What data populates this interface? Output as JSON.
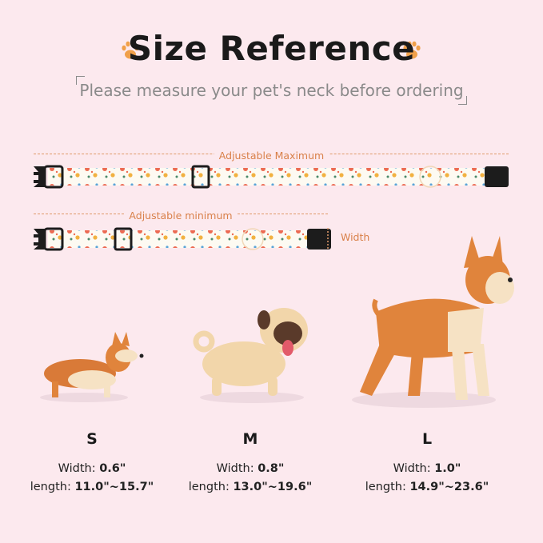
{
  "header": {
    "title": "Size Reference",
    "subtitle": "Please measure your pet's neck before ordering",
    "icons": [
      "paw-icon",
      "paw-icon"
    ]
  },
  "collar_diagram": {
    "max_label": "Adjustable Maximum",
    "min_label": "Adjustable minimum",
    "width_label": "Width"
  },
  "sizes": [
    {
      "label": "S",
      "width_label": "Width:",
      "width_value": "0.6\"",
      "length_label": "length:",
      "length_value": "11.0\"~15.7\""
    },
    {
      "label": "M",
      "width_label": "Width:",
      "width_value": "0.8\"",
      "length_label": "length:",
      "length_value": "13.0\"~19.6\""
    },
    {
      "label": "L",
      "width_label": "Width:",
      "width_value": "1.0\"",
      "length_label": "length:",
      "length_value": "14.9\"~23.6\""
    }
  ],
  "colors": {
    "background": "#fce9ee",
    "accent": "#d9814a",
    "paw": "#f0a04a",
    "dog_orange": "#e0843c",
    "dog_cream": "#f6e2c4"
  }
}
